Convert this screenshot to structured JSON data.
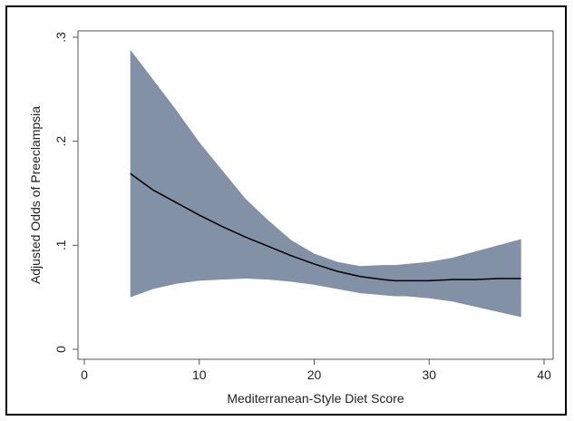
{
  "chart_data": {
    "type": "line",
    "title": "",
    "xlabel": "Mediterranean-Style Diet Score",
    "ylabel": "Adjusted Odds of Preeclampsia",
    "xlim": [
      0,
      40
    ],
    "ylim": [
      0,
      0.3
    ],
    "x_ticks": [
      0,
      10,
      20,
      30,
      40
    ],
    "x_tick_labels": [
      "0",
      "10",
      "20",
      "30",
      "40"
    ],
    "y_ticks": [
      0,
      0.1,
      0.2,
      0.3
    ],
    "y_tick_labels": [
      "0",
      ".1",
      ".2",
      ".3"
    ],
    "grid": false,
    "legend": "none",
    "colors": {
      "line": "#000000",
      "band": "#8391a6",
      "axis": "#555555"
    },
    "series": [
      {
        "type": "line",
        "x": [
          4,
          6,
          8,
          10,
          12,
          14,
          16,
          18,
          20,
          22,
          24,
          26,
          27,
          28,
          30,
          32,
          34,
          36,
          38
        ],
        "y": [
          0.169,
          0.153,
          0.141,
          0.129,
          0.118,
          0.108,
          0.099,
          0.09,
          0.082,
          0.075,
          0.07,
          0.067,
          0.066,
          0.066,
          0.066,
          0.067,
          0.067,
          0.068,
          0.068
        ]
      },
      {
        "type": "band",
        "x": [
          4,
          6,
          8,
          10,
          12,
          14,
          16,
          18,
          20,
          22,
          24,
          26,
          27,
          28,
          30,
          32,
          34,
          36,
          38
        ],
        "lower": [
          0.05,
          0.058,
          0.063,
          0.066,
          0.067,
          0.068,
          0.067,
          0.065,
          0.062,
          0.058,
          0.054,
          0.052,
          0.051,
          0.051,
          0.049,
          0.046,
          0.041,
          0.036,
          0.031
        ],
        "upper": [
          0.288,
          0.259,
          0.23,
          0.199,
          0.172,
          0.145,
          0.124,
          0.105,
          0.092,
          0.084,
          0.08,
          0.081,
          0.081,
          0.082,
          0.084,
          0.088,
          0.094,
          0.1,
          0.106
        ]
      }
    ]
  }
}
